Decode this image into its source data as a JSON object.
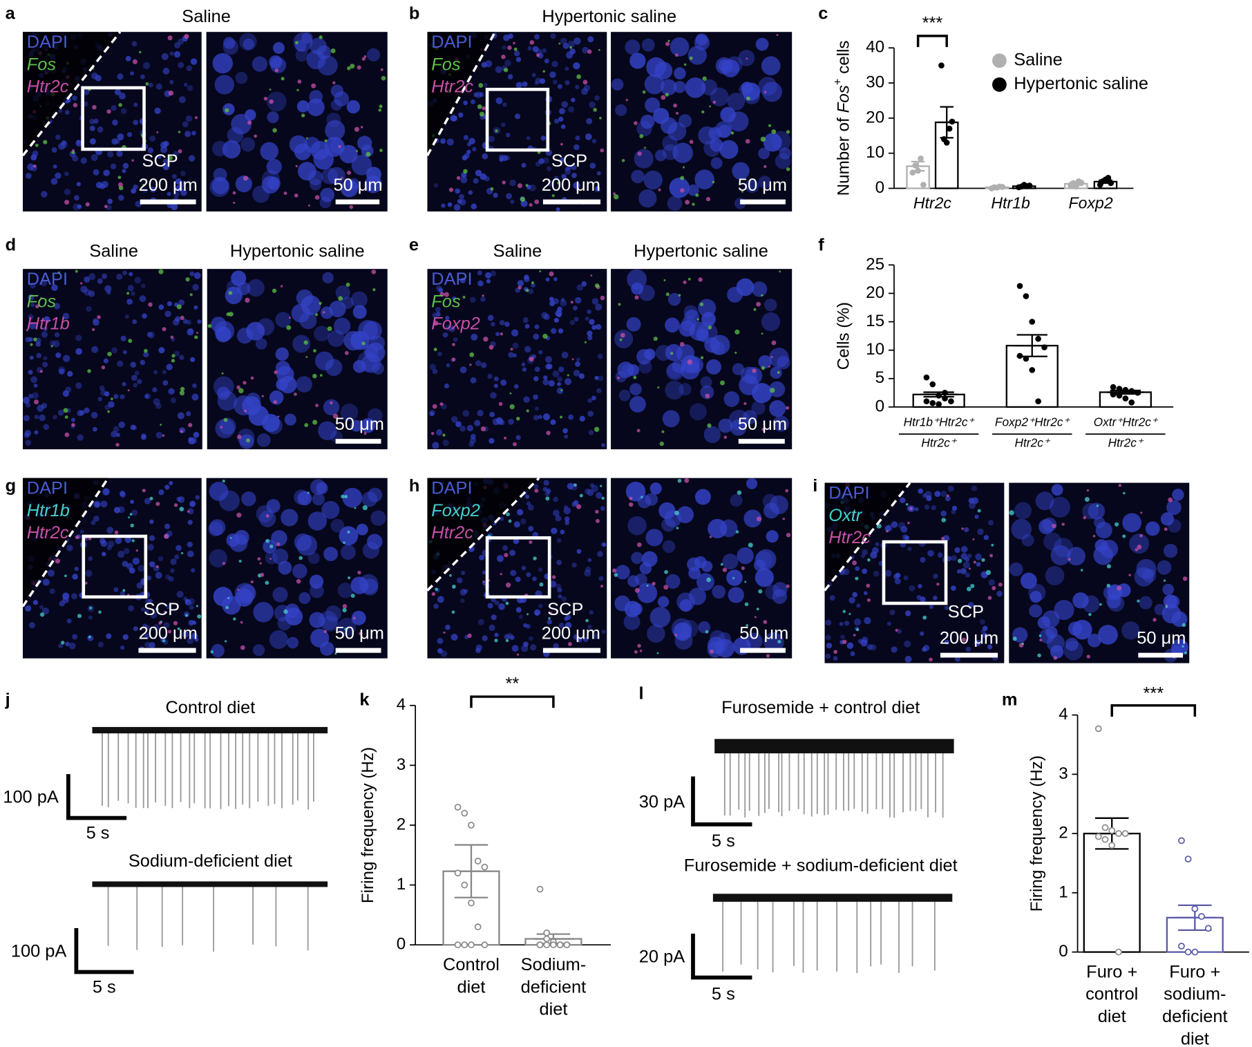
{
  "figure": {
    "images": [
      {
        "letter": "a",
        "titles": [
          "Saline"
        ],
        "channels": [
          {
            "name": "DAPI",
            "color": "#4a5bd6"
          },
          {
            "name": "Fos",
            "color": "#5ec04a"
          },
          {
            "name": "Htr2c",
            "color": "#c750a8"
          }
        ],
        "region": "SCP",
        "scale_left": "200 μm",
        "scale_right": "50 μm"
      },
      {
        "letter": "b",
        "titles": [
          "Hypertonic saline"
        ],
        "channels": [
          {
            "name": "DAPI",
            "color": "#4a5bd6"
          },
          {
            "name": "Fos",
            "color": "#5ec04a"
          },
          {
            "name": "Htr2c",
            "color": "#c750a8"
          }
        ],
        "region": "SCP",
        "scale_left": "200 μm",
        "scale_right": "50 μm"
      },
      {
        "letter": "d",
        "titles": [
          "Saline",
          "Hypertonic saline"
        ],
        "channels": [
          {
            "name": "DAPI",
            "color": "#4a5bd6"
          },
          {
            "name": "Fos",
            "color": "#5ec04a"
          },
          {
            "name": "Htr1b",
            "color": "#c750a8"
          }
        ],
        "scale_right": "50 μm"
      },
      {
        "letter": "e",
        "titles": [
          "Saline",
          "Hypertonic saline"
        ],
        "channels": [
          {
            "name": "DAPI",
            "color": "#4a5bd6"
          },
          {
            "name": "Fos",
            "color": "#5ec04a"
          },
          {
            "name": "Foxp2",
            "color": "#c750a8"
          }
        ],
        "scale_right": "50 μm"
      },
      {
        "letter": "g",
        "titles": [],
        "channels": [
          {
            "name": "DAPI",
            "color": "#4a5bd6"
          },
          {
            "name": "Htr1b",
            "color": "#45d0d0"
          },
          {
            "name": "Htr2c",
            "color": "#c750a8"
          }
        ],
        "region": "SCP",
        "scale_left": "200 μm",
        "scale_right": "50 μm"
      },
      {
        "letter": "h",
        "titles": [],
        "channels": [
          {
            "name": "DAPI",
            "color": "#4a5bd6"
          },
          {
            "name": "Foxp2",
            "color": "#45d0d0"
          },
          {
            "name": "Htr2c",
            "color": "#c750a8"
          }
        ],
        "region": "SCP",
        "scale_left": "200 μm",
        "scale_right": "50 μm"
      },
      {
        "letter": "i",
        "titles": [],
        "channels": [
          {
            "name": "DAPI",
            "color": "#4a5bd6"
          },
          {
            "name": "Oxtr",
            "color": "#45d0d0"
          },
          {
            "name": "Htr2c",
            "color": "#c750a8"
          }
        ],
        "region": "SCP",
        "scale_left": "200 μm",
        "scale_right": "50 μm"
      }
    ],
    "traces": [
      {
        "letter": "j",
        "traces": [
          {
            "title": "Control diet",
            "amp": "100 pA",
            "time": "5 s"
          },
          {
            "title": "Sodium-deficient diet",
            "amp": "100 pA",
            "time": "5 s"
          }
        ]
      },
      {
        "letter": "l",
        "traces": [
          {
            "title": "Furosemide + control diet",
            "amp": "30 pA",
            "time": "5 s"
          },
          {
            "title": "Furosemide + sodium-deficient diet",
            "amp": "20 pA",
            "time": "5 s"
          }
        ]
      }
    ]
  },
  "chart_data": [
    {
      "type": "bar",
      "letter": "c",
      "ylabel": [
        "Number of ",
        "Fos",
        "+",
        " cells"
      ],
      "categories": [
        "Htr2c",
        "Htr1b",
        "Foxp2"
      ],
      "series": [
        {
          "name": "Saline",
          "color": "#b0b0b0",
          "values": [
            6.3,
            0.3,
            1.3
          ],
          "errors": [
            1.3,
            0.1,
            0.4
          ],
          "points": [
            [
              4.5,
              6.5,
              5,
              8.5,
              1
            ],
            [
              0,
              0.3,
              0.2,
              0.5,
              0.4
            ],
            [
              0.8,
              1.5,
              0.5,
              2,
              1.6
            ]
          ]
        },
        {
          "name": "Hypertonic saline",
          "color": "#000000",
          "values": [
            18.8,
            0.6,
            1.9
          ],
          "errors": [
            4.4,
            0.2,
            0.4
          ],
          "points": [
            [
              35,
              14,
              13,
              17,
              19
            ],
            [
              0.3,
              0.5,
              1,
              0.6,
              0.8
            ],
            [
              1,
              2,
              2.5,
              3,
              1.5
            ]
          ]
        }
      ],
      "ylim": [
        0,
        40
      ],
      "yticks": [
        0,
        10,
        20,
        30,
        40
      ],
      "annotation": "***",
      "legend": "top-right"
    },
    {
      "type": "bar",
      "letter": "f",
      "ylabel": [
        "Cells (%)"
      ],
      "categories": [
        {
          "numerator": "Htr1b⁺Htr2c⁺",
          "denominator": "Htr2c⁺"
        },
        {
          "numerator": "Foxp2⁺Htr2c⁺",
          "denominator": "Htr2c⁺"
        },
        {
          "numerator": "Oxtr⁺Htr2c⁺",
          "denominator": "Htr2c⁺"
        }
      ],
      "series": [
        {
          "color": "#000000",
          "values": [
            2.2,
            10.8,
            2.6
          ],
          "errors": [
            0.4,
            1.9,
            0.3
          ],
          "points": [
            [
              5.2,
              4,
              2,
              1.5,
              1,
              1,
              0.7,
              0.5,
              2.5
            ],
            [
              21.3,
              19.5,
              15,
              12,
              10.5,
              9,
              8.5,
              6.5,
              1
            ],
            [
              3.5,
              3.2,
              3,
              2.8,
              2.5,
              2.2,
              2,
              1.5,
              0.8
            ]
          ]
        }
      ],
      "ylim": [
        0,
        25
      ],
      "yticks": [
        0,
        5,
        10,
        15,
        20,
        25
      ]
    },
    {
      "type": "bar",
      "letter": "k",
      "ylabel": [
        "Firing frequency (Hz)"
      ],
      "categories": [
        [
          "Control",
          "diet"
        ],
        [
          "Sodium-",
          "deficient",
          "diet"
        ]
      ],
      "series": [
        {
          "color": "#888888",
          "values": [
            1.23,
            0.1
          ],
          "errors": [
            0.44,
            0.08
          ],
          "points": [
            [
              2.3,
              2.2,
              2.0,
              1.4,
              1.3,
              1.2,
              1.0,
              0.7,
              0.3,
              0,
              0,
              0,
              0
            ],
            [
              0.93,
              0.1,
              0.05,
              0,
              0,
              0,
              0,
              0,
              0,
              0,
              0,
              0.2
            ]
          ]
        }
      ],
      "ylim": [
        0,
        4
      ],
      "yticks": [
        0,
        1,
        2,
        3,
        4
      ],
      "annotation": "**"
    },
    {
      "type": "bar",
      "letter": "m",
      "ylabel": [
        "Firing frequency (Hz)"
      ],
      "categories": [
        [
          "Furo +",
          "control",
          "diet"
        ],
        [
          "Furo +",
          "sodium-",
          "deficient",
          "diet"
        ]
      ],
      "series": [
        {
          "color": "#000000",
          "values": [
            2.0,
            0.58
          ],
          "errors": [
            0.26,
            0.21
          ],
          "points": [
            [
              3.77,
              2.1,
              2.05,
              2.0,
              2.0,
              1.95,
              1.9,
              1.8,
              0
            ],
            [
              1.88,
              1.57,
              0.73,
              0.6,
              0.4,
              0.1,
              0,
              0
            ]
          ]
        }
      ],
      "ylim": [
        0,
        4
      ],
      "yticks": [
        0,
        1,
        2,
        3,
        4
      ],
      "annotation": "***",
      "point_colors": [
        "#888888",
        "#5a5aa8"
      ],
      "bar_colors": [
        "#000000",
        "#5a5aa8"
      ]
    }
  ]
}
